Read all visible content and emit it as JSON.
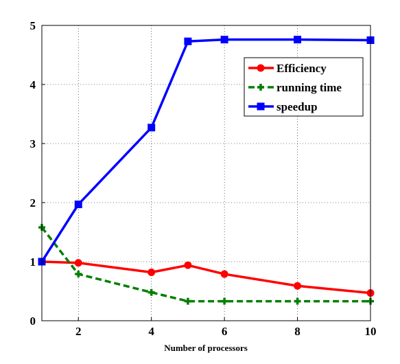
{
  "chart_data": {
    "type": "line",
    "title": "",
    "xlabel": "Number of processors",
    "ylabel": "",
    "xlim": [
      1,
      10
    ],
    "ylim": [
      0,
      5
    ],
    "xticks": [
      2,
      4,
      6,
      8,
      10
    ],
    "yticks": [
      0,
      1,
      2,
      3,
      4,
      5
    ],
    "grid": true,
    "legend_position": "top-right",
    "x": [
      1,
      2,
      4,
      5,
      6,
      8,
      10
    ],
    "series": [
      {
        "name": "Efficiency",
        "color": "#ff0000",
        "line_style": "solid",
        "marker": "circle",
        "values": [
          1.0,
          0.98,
          0.82,
          0.94,
          0.79,
          0.59,
          0.47
        ]
      },
      {
        "name": "running time",
        "color": "#008000",
        "line_style": "dashed",
        "marker": "plus",
        "values": [
          1.58,
          0.79,
          0.48,
          0.33,
          0.33,
          0.33,
          0.33
        ]
      },
      {
        "name": "speedup",
        "color": "#0000ff",
        "line_style": "solid",
        "marker": "square",
        "values": [
          1.0,
          1.97,
          3.27,
          4.73,
          4.76,
          4.76,
          4.75
        ]
      }
    ]
  }
}
